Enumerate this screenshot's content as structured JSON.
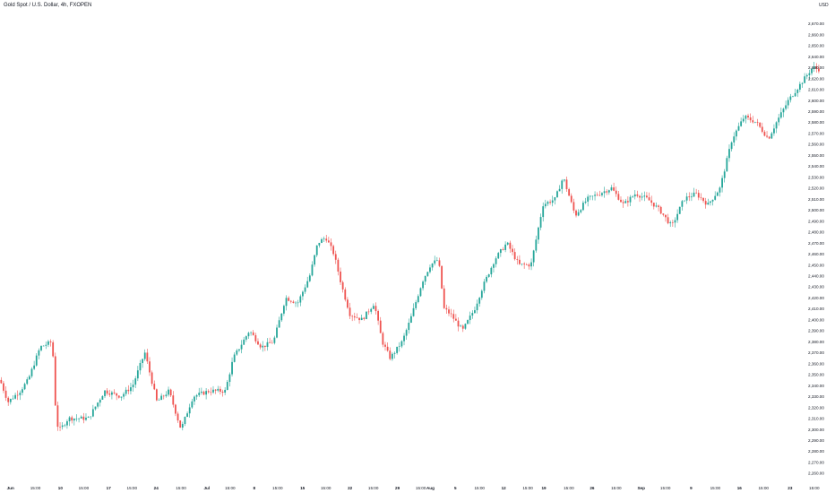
{
  "title": "Gold Spot / U.S. Dollar, 4h, FXOPEN",
  "currency": "USD",
  "colors": {
    "up": "#26a69a",
    "down": "#ef5350",
    "text": "#131722",
    "background": "#ffffff"
  },
  "chart_data": {
    "type": "candlestick",
    "title": "Gold Spot / U.S. Dollar, 4h, FXOPEN",
    "ylim": [
      2255,
      2685
    ],
    "y_ticks": [
      2260,
      2270,
      2280,
      2290,
      2300,
      2310,
      2320,
      2330,
      2340,
      2350,
      2360,
      2370,
      2380,
      2390,
      2400,
      2410,
      2420,
      2430,
      2440,
      2450,
      2460,
      2470,
      2480,
      2490,
      2500,
      2510,
      2520,
      2530,
      2540,
      2550,
      2560,
      2570,
      2580,
      2590,
      2600,
      2610,
      2620,
      2630,
      2640,
      2650,
      2660,
      2670
    ],
    "y_tick_labels": [
      "2,260.00",
      "2,270.00",
      "2,280.00",
      "2,290.00",
      "2,300.00",
      "2,310.00",
      "2,320.00",
      "2,330.00",
      "2,340.00",
      "2,350.00",
      "2,360.00",
      "2,370.00",
      "2,380.00",
      "2,390.00",
      "2,400.00",
      "2,410.00",
      "2,420.00",
      "2,430.00",
      "2,440.00",
      "2,450.00",
      "2,460.00",
      "2,470.00",
      "2,480.00",
      "2,490.00",
      "2,500.00",
      "2,510.00",
      "2,520.00",
      "2,530.00",
      "2,540.00",
      "2,550.00",
      "2,560.00",
      "2,570.00",
      "2,580.00",
      "2,590.00",
      "2,600.00",
      "2,610.00",
      "2,620.00",
      "2,630.00",
      "2,640.00",
      "2,650.00",
      "2,660.00",
      "2,670.00"
    ],
    "x_ticks": [
      {
        "label": "Jun",
        "t": 0.013
      },
      {
        "label": "15:00",
        "t": 0.044
      },
      {
        "label": "10",
        "t": 0.075
      },
      {
        "label": "15:00",
        "t": 0.104
      },
      {
        "label": "17",
        "t": 0.135
      },
      {
        "label": "15:00",
        "t": 0.164
      },
      {
        "label": "24",
        "t": 0.194
      },
      {
        "label": "15:00",
        "t": 0.225
      },
      {
        "label": "Jul",
        "t": 0.257
      },
      {
        "label": "15:00",
        "t": 0.286
      },
      {
        "label": "8",
        "t": 0.316
      },
      {
        "label": "15:00",
        "t": 0.345
      },
      {
        "label": "15",
        "t": 0.376
      },
      {
        "label": "15:00",
        "t": 0.405
      },
      {
        "label": "22",
        "t": 0.435
      },
      {
        "label": "15:00",
        "t": 0.464
      },
      {
        "label": "29",
        "t": 0.494
      },
      {
        "label": "15:00",
        "t": 0.523
      },
      {
        "label": "Aug",
        "t": 0.535
      },
      {
        "label": "5",
        "t": 0.566
      },
      {
        "label": "15:00",
        "t": 0.596
      },
      {
        "label": "12",
        "t": 0.626
      },
      {
        "label": "15:00",
        "t": 0.656
      },
      {
        "label": "19",
        "t": 0.676
      },
      {
        "label": "15:00",
        "t": 0.707
      },
      {
        "label": "26",
        "t": 0.736
      },
      {
        "label": "15:00",
        "t": 0.766
      },
      {
        "label": "Sep",
        "t": 0.797
      },
      {
        "label": "15:00",
        "t": 0.827
      },
      {
        "label": "9",
        "t": 0.859
      },
      {
        "label": "15:00",
        "t": 0.889
      },
      {
        "label": "16",
        "t": 0.919
      },
      {
        "label": "15:00",
        "t": 0.949
      },
      {
        "label": "23",
        "t": 0.982
      },
      {
        "label": "15:00",
        "t": 1.012
      }
    ],
    "series_anchors": [
      {
        "t": 0.0,
        "price": 2345
      },
      {
        "t": 0.01,
        "price": 2325
      },
      {
        "t": 0.025,
        "price": 2335
      },
      {
        "t": 0.035,
        "price": 2345
      },
      {
        "t": 0.05,
        "price": 2375
      },
      {
        "t": 0.065,
        "price": 2380
      },
      {
        "t": 0.07,
        "price": 2305
      },
      {
        "t": 0.075,
        "price": 2300
      },
      {
        "t": 0.085,
        "price": 2310
      },
      {
        "t": 0.11,
        "price": 2310
      },
      {
        "t": 0.13,
        "price": 2335
      },
      {
        "t": 0.15,
        "price": 2330
      },
      {
        "t": 0.165,
        "price": 2340
      },
      {
        "t": 0.18,
        "price": 2370
      },
      {
        "t": 0.195,
        "price": 2325
      },
      {
        "t": 0.21,
        "price": 2335
      },
      {
        "t": 0.225,
        "price": 2300
      },
      {
        "t": 0.24,
        "price": 2330
      },
      {
        "t": 0.26,
        "price": 2335
      },
      {
        "t": 0.28,
        "price": 2335
      },
      {
        "t": 0.29,
        "price": 2365
      },
      {
        "t": 0.31,
        "price": 2390
      },
      {
        "t": 0.325,
        "price": 2375
      },
      {
        "t": 0.34,
        "price": 2380
      },
      {
        "t": 0.355,
        "price": 2420
      },
      {
        "t": 0.37,
        "price": 2415
      },
      {
        "t": 0.385,
        "price": 2440
      },
      {
        "t": 0.395,
        "price": 2470
      },
      {
        "t": 0.405,
        "price": 2475
      },
      {
        "t": 0.415,
        "price": 2460
      },
      {
        "t": 0.425,
        "price": 2430
      },
      {
        "t": 0.435,
        "price": 2405
      },
      {
        "t": 0.45,
        "price": 2400
      },
      {
        "t": 0.465,
        "price": 2415
      },
      {
        "t": 0.475,
        "price": 2380
      },
      {
        "t": 0.485,
        "price": 2365
      },
      {
        "t": 0.5,
        "price": 2380
      },
      {
        "t": 0.51,
        "price": 2400
      },
      {
        "t": 0.525,
        "price": 2435
      },
      {
        "t": 0.535,
        "price": 2450
      },
      {
        "t": 0.545,
        "price": 2455
      },
      {
        "t": 0.552,
        "price": 2410
      },
      {
        "t": 0.56,
        "price": 2405
      },
      {
        "t": 0.575,
        "price": 2390
      },
      {
        "t": 0.59,
        "price": 2410
      },
      {
        "t": 0.6,
        "price": 2430
      },
      {
        "t": 0.615,
        "price": 2455
      },
      {
        "t": 0.63,
        "price": 2470
      },
      {
        "t": 0.645,
        "price": 2450
      },
      {
        "t": 0.66,
        "price": 2450
      },
      {
        "t": 0.675,
        "price": 2505
      },
      {
        "t": 0.69,
        "price": 2510
      },
      {
        "t": 0.7,
        "price": 2530
      },
      {
        "t": 0.715,
        "price": 2495
      },
      {
        "t": 0.73,
        "price": 2510
      },
      {
        "t": 0.745,
        "price": 2515
      },
      {
        "t": 0.76,
        "price": 2520
      },
      {
        "t": 0.775,
        "price": 2505
      },
      {
        "t": 0.79,
        "price": 2515
      },
      {
        "t": 0.805,
        "price": 2510
      },
      {
        "t": 0.82,
        "price": 2500
      },
      {
        "t": 0.835,
        "price": 2485
      },
      {
        "t": 0.85,
        "price": 2510
      },
      {
        "t": 0.865,
        "price": 2515
      },
      {
        "t": 0.88,
        "price": 2505
      },
      {
        "t": 0.895,
        "price": 2520
      },
      {
        "t": 0.91,
        "price": 2565
      },
      {
        "t": 0.925,
        "price": 2585
      },
      {
        "t": 0.94,
        "price": 2580
      },
      {
        "t": 0.955,
        "price": 2565
      },
      {
        "t": 0.965,
        "price": 2580
      },
      {
        "t": 0.98,
        "price": 2600
      },
      {
        "t": 0.995,
        "price": 2615
      },
      {
        "t": 1.01,
        "price": 2630
      },
      {
        "t": 1.02,
        "price": 2628
      }
    ]
  }
}
